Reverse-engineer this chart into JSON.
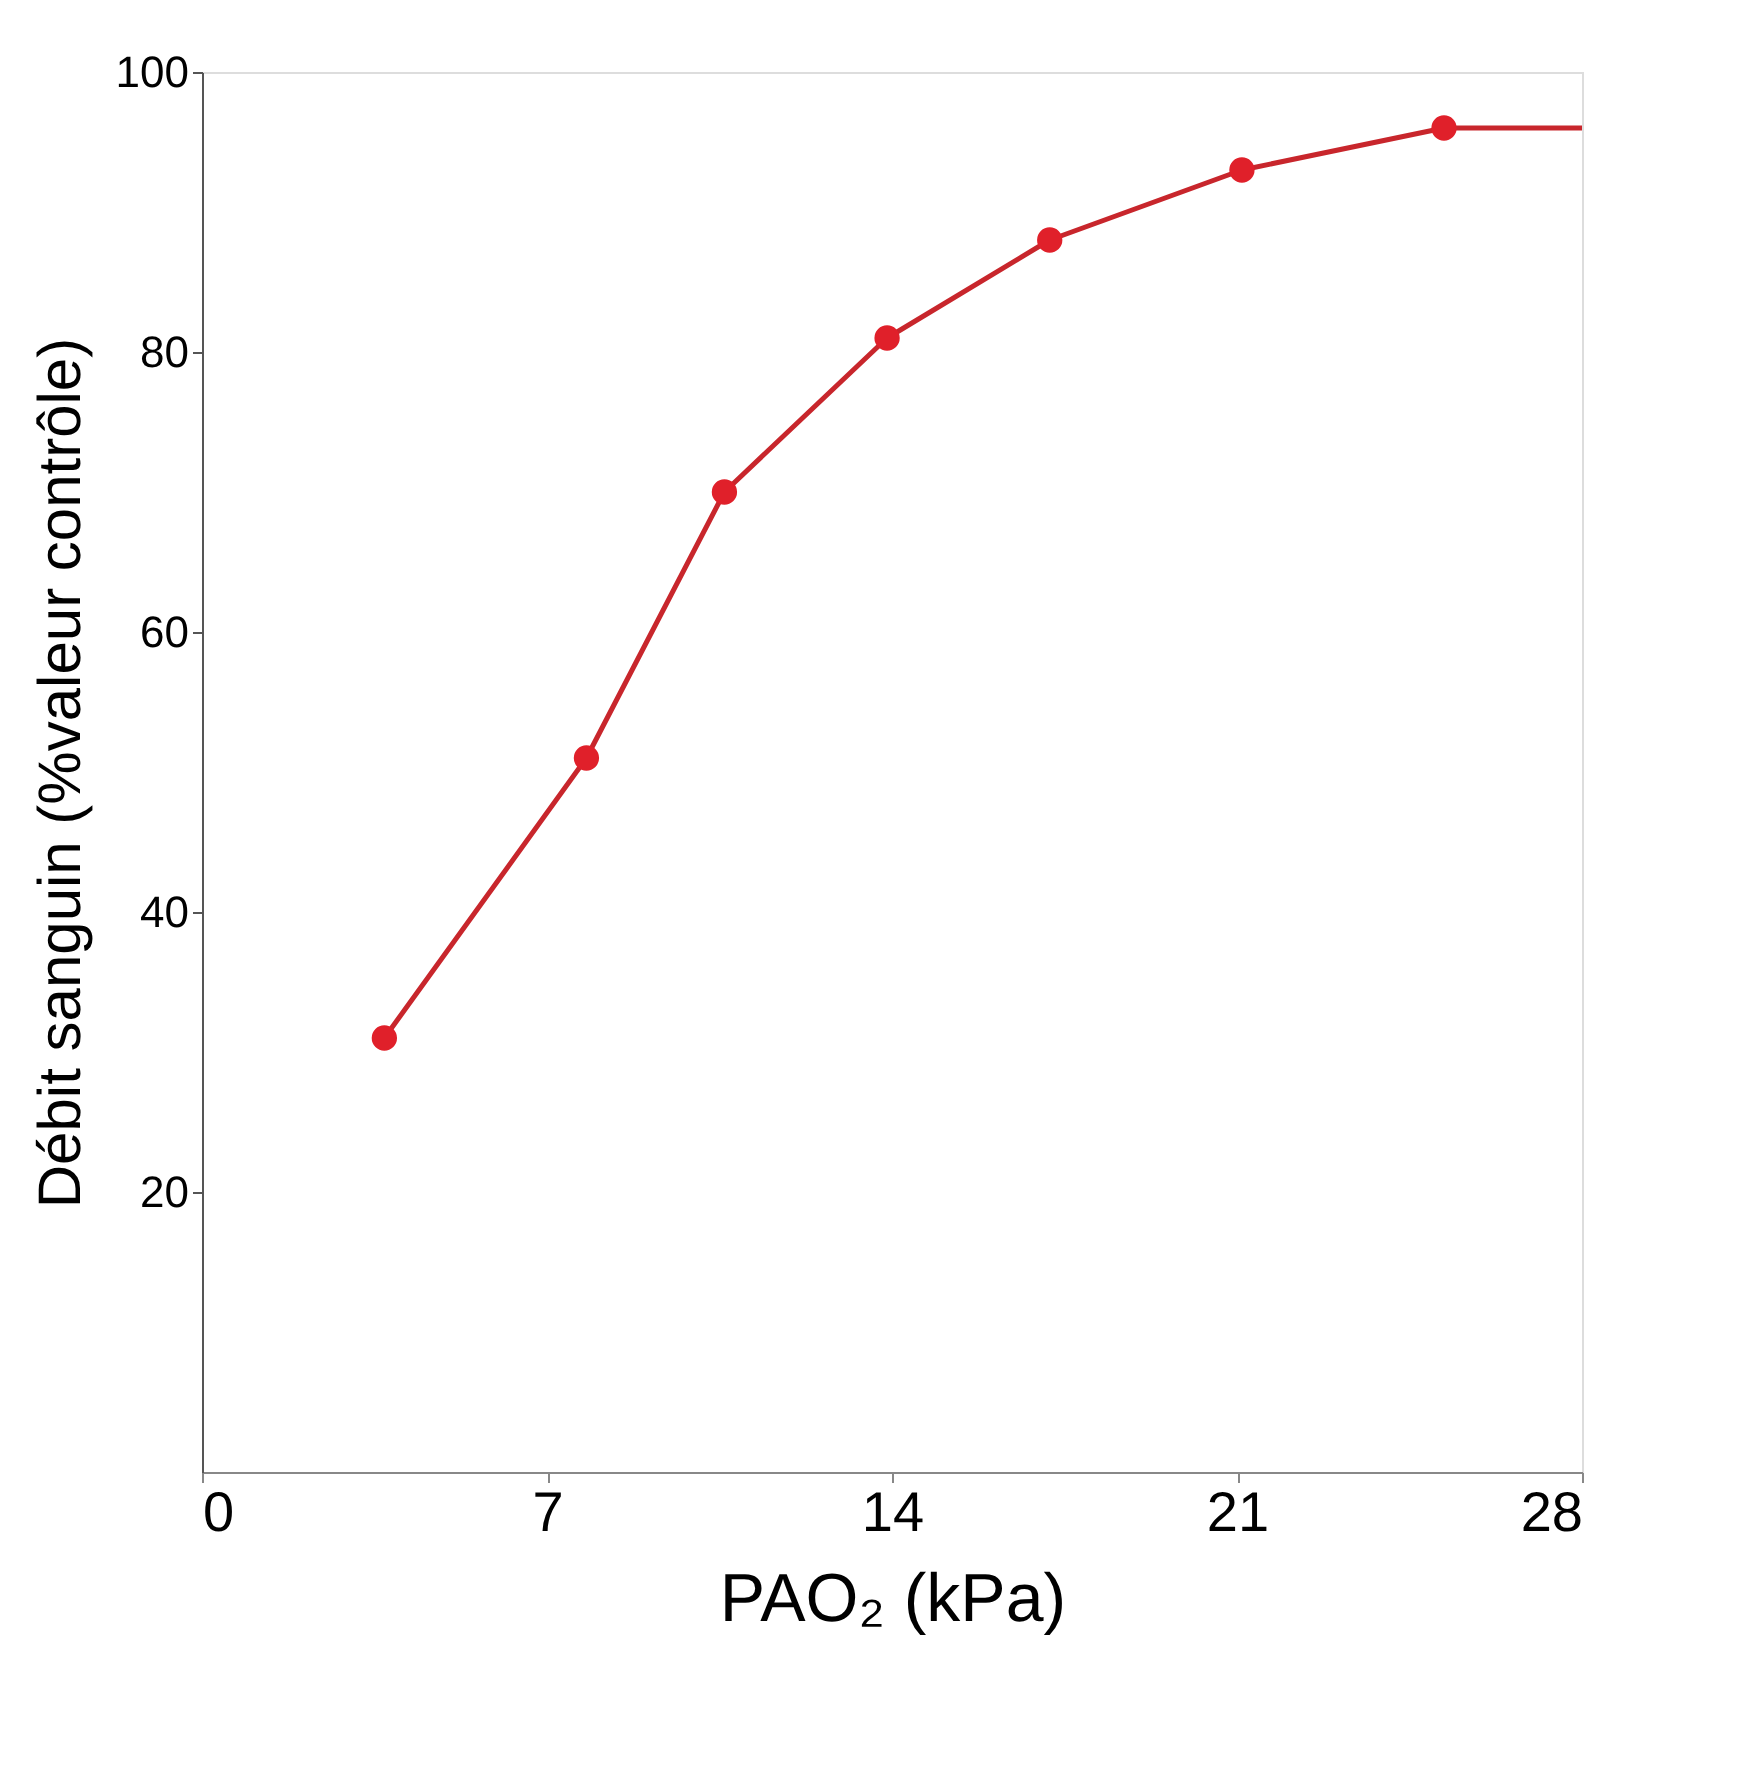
{
  "chart_data": {
    "type": "line",
    "xlabel": "PAO₂ (kPa)",
    "ylabel": "Débit sanguin (%valeur contrôle)",
    "xlim": [
      0,
      28
    ],
    "xticks": [
      0,
      7,
      14,
      21,
      28
    ],
    "ylim": [
      0,
      100
    ],
    "yticks": [
      20,
      40,
      60,
      80,
      100
    ],
    "grid": false,
    "series": [
      {
        "color": "#c8262c",
        "marker": "none",
        "x": [
          3.7,
          7.8,
          10.6,
          13.9,
          17.2,
          21.1,
          25.2,
          28
        ],
        "values": [
          31,
          51,
          70,
          81,
          88,
          93,
          96,
          96
        ]
      },
      {
        "type": "scatter",
        "color": "#e0202a",
        "marker": "circle",
        "x": [
          3.7,
          7.8,
          10.6,
          13.9,
          17.2,
          21.1,
          25.2
        ],
        "values": [
          31,
          51,
          70,
          81,
          88,
          93,
          96
        ]
      }
    ]
  }
}
